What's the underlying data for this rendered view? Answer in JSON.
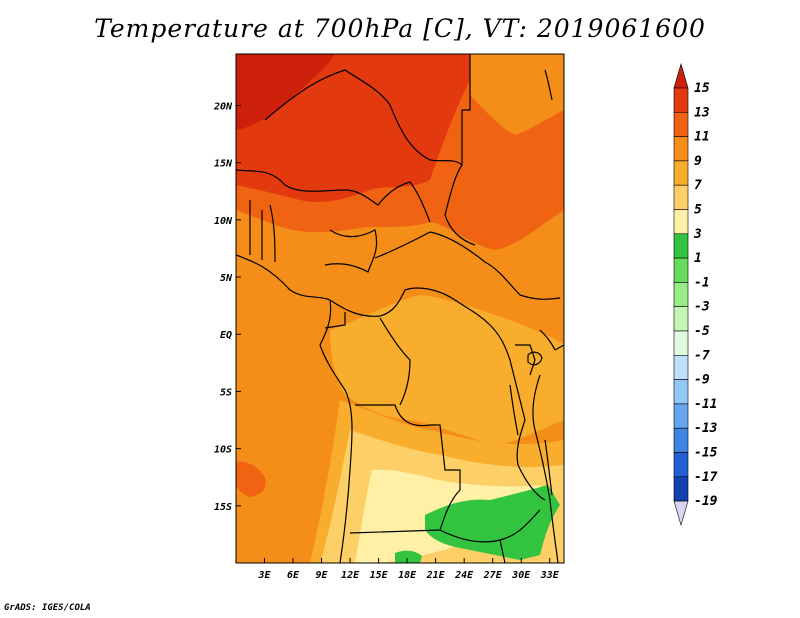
{
  "title": "Temperature at 700hPa [C], VT: 2019061600",
  "footer": "GrADS: IGES/COLA",
  "map": {
    "lon_range": [
      0,
      34.5
    ],
    "lat_range": [
      -20,
      24.5
    ],
    "lon_ticks": [
      "3E",
      "6E",
      "9E",
      "12E",
      "15E",
      "18E",
      "21E",
      "24E",
      "27E",
      "30E",
      "33E"
    ],
    "lon_tick_values": [
      3,
      6,
      9,
      12,
      15,
      18,
      21,
      24,
      27,
      30,
      33
    ],
    "lat_ticks": [
      "20N",
      "15N",
      "10N",
      "5N",
      "EQ",
      "5S",
      "10S",
      "15S"
    ],
    "lat_tick_values": [
      20,
      15,
      10,
      5,
      0,
      -5,
      -10,
      -15
    ]
  },
  "colorbar": {
    "labels": [
      "15",
      "13",
      "11",
      "9",
      "7",
      "5",
      "3",
      "1",
      "-1",
      "-3",
      "-5",
      "-7",
      "-9",
      "-11",
      "-13",
      "-15",
      "-17",
      "-19"
    ],
    "colors": [
      "#e23a0e",
      "#f06312",
      "#f58d19",
      "#f9ad2c",
      "#fdd067",
      "#fff0a6",
      "#33c43f",
      "#67db5c",
      "#98ec87",
      "#c6f6b6",
      "#e3fae2",
      "#bde1fb",
      "#93c7f6",
      "#64a7ef",
      "#3d84e3",
      "#2060d2",
      "#1240b0",
      "#0a1f7a"
    ],
    "over_color": "#cc200a",
    "under_color": "#d8d6f4"
  },
  "field_colors": {
    "lvl15": "#cc200a",
    "lvl13": "#e23a0e",
    "lvl11": "#f06312",
    "lvl9": "#f58d19",
    "lvl7": "#f9ad2c",
    "lvl5": "#fdd067",
    "lvl3": "#fff0a6",
    "lvl1": "#33c43f"
  }
}
